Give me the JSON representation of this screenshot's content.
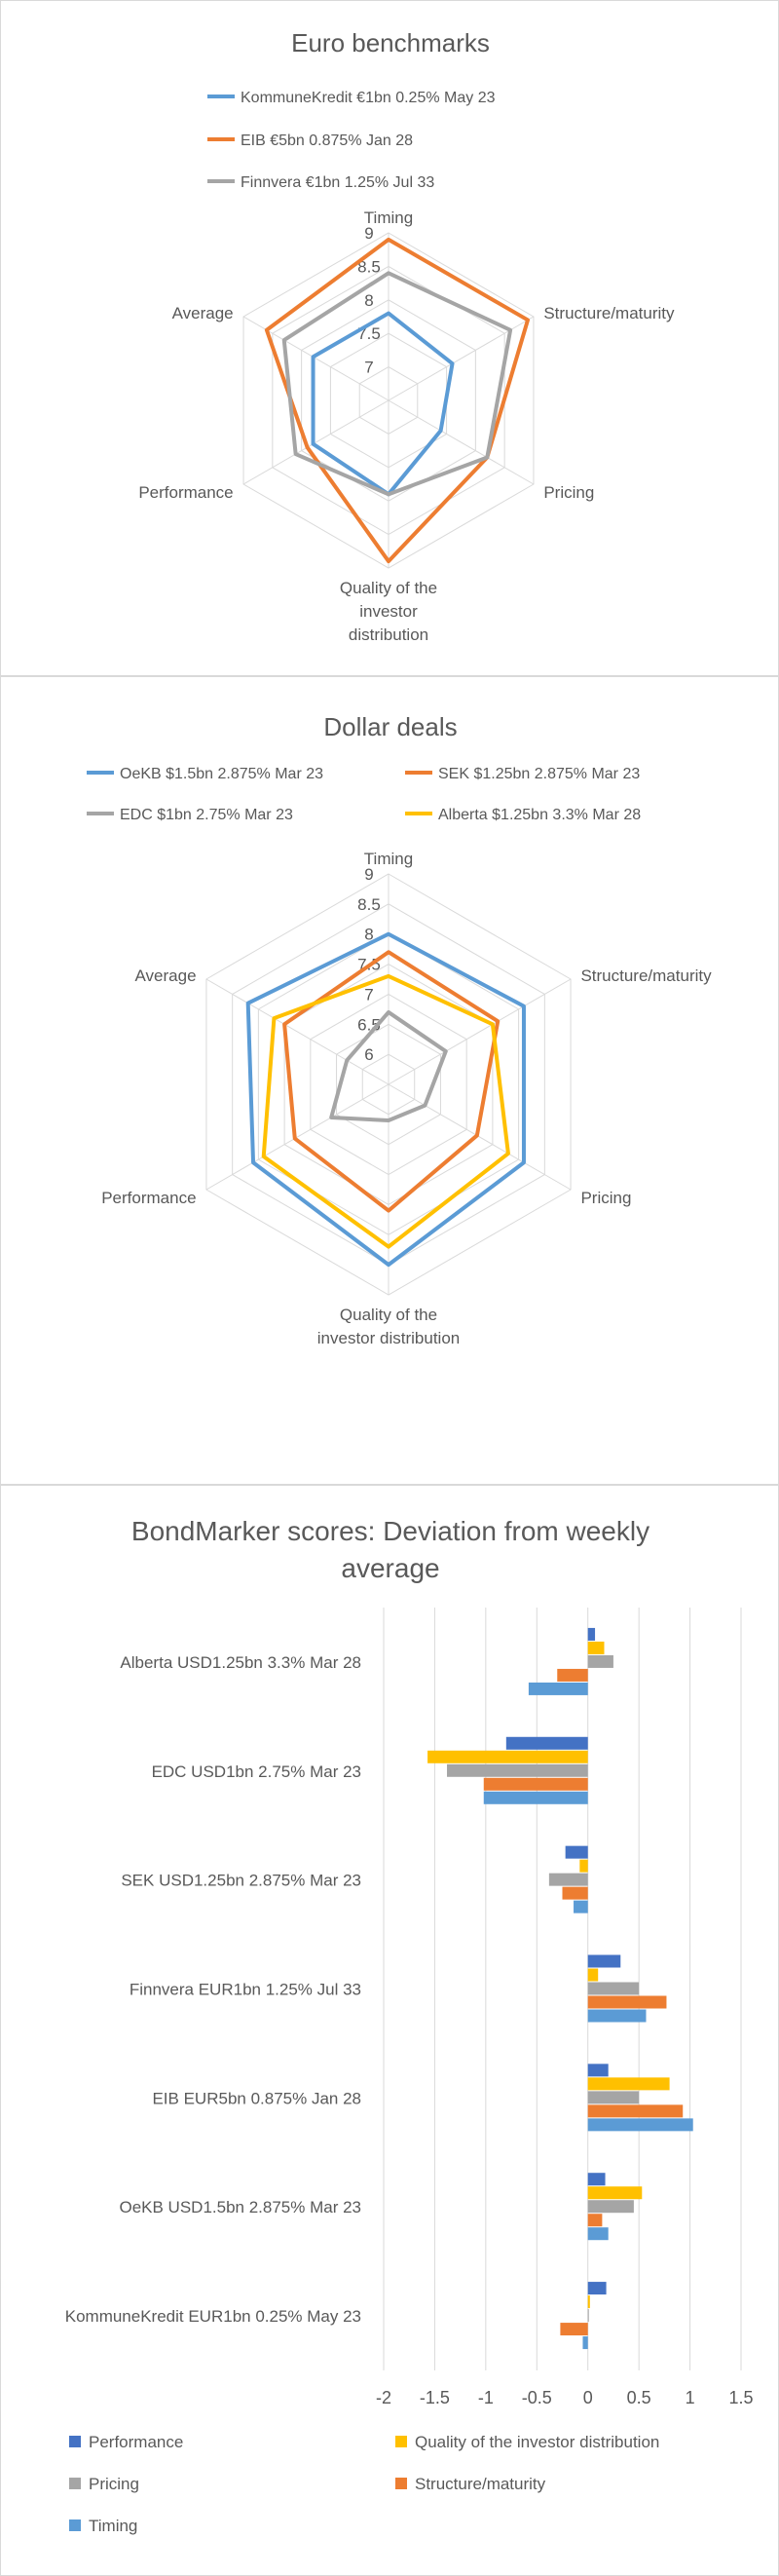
{
  "chart_data": [
    {
      "type": "radar",
      "title": "Euro benchmarks",
      "axes": [
        "Timing",
        "Structure/maturity",
        "Pricing",
        "Quality of the investor distribution",
        "Performance",
        "Average"
      ],
      "axis_label_lines": [
        [
          "Timing"
        ],
        [
          "Structure/maturity"
        ],
        [
          "Pricing"
        ],
        [
          "Quality of the",
          "investor",
          "distribution"
        ],
        [
          "Performance"
        ],
        [
          "Average"
        ]
      ],
      "rmin": 6.5,
      "rmax": 9,
      "ticks": [
        7,
        7.5,
        8,
        8.5,
        9
      ],
      "tick_labels": [
        "7",
        "7.5",
        "8",
        "8.5",
        "9"
      ],
      "grid": true,
      "legend_position": "top",
      "series": [
        {
          "name": "KommuneKredit €1bn 0.25% May 23",
          "color": "#5b9bd5",
          "values": [
            7.8,
            7.6,
            7.4,
            7.9,
            7.8,
            7.8
          ]
        },
        {
          "name": "EIB €5bn 0.875% Jan 28",
          "color": "#ed7d31",
          "values": [
            8.9,
            8.9,
            8.2,
            8.9,
            7.9,
            8.6
          ]
        },
        {
          "name": "Finnvera €1bn 1.25% Jul 33",
          "color": "#a5a5a5",
          "values": [
            8.4,
            8.6,
            8.2,
            7.9,
            8.1,
            8.3
          ]
        }
      ]
    },
    {
      "type": "radar",
      "title": "Dollar deals",
      "axes": [
        "Timing",
        "Structure/maturity",
        "Pricing",
        "Quality of the investor distribution",
        "Performance",
        "Average"
      ],
      "axis_label_lines": [
        [
          "Timing"
        ],
        [
          "Structure/maturity"
        ],
        [
          "Pricing"
        ],
        [
          "Quality of the",
          "investor distribution"
        ],
        [
          "Performance"
        ],
        [
          "Average"
        ]
      ],
      "rmin": 5.5,
      "rmax": 9,
      "ticks": [
        6,
        6.5,
        7,
        7.5,
        8,
        8.5,
        9
      ],
      "tick_labels": [
        "6",
        "6.5",
        "7",
        "7.5",
        "8",
        "8.5",
        "9"
      ],
      "grid": true,
      "legend_position": "top",
      "series": [
        {
          "name": "OeKB $1.5bn 2.875% Mar 23",
          "color": "#5b9bd5",
          "values": [
            8.0,
            8.1,
            8.1,
            8.5,
            8.1,
            8.2
          ]
        },
        {
          "name": "SEK $1.25bn 2.875% Mar 23",
          "color": "#ed7d31",
          "values": [
            7.7,
            7.6,
            7.2,
            7.6,
            7.3,
            7.5
          ]
        },
        {
          "name": "EDC $1bn 2.75% Mar 23",
          "color": "#a5a5a5",
          "values": [
            6.7,
            6.6,
            6.2,
            6.1,
            6.6,
            6.3
          ]
        },
        {
          "name": "Alberta $1.25bn 3.3% Mar 28",
          "color": "#ffc000",
          "values": [
            7.3,
            7.5,
            7.8,
            8.2,
            7.9,
            7.7
          ]
        }
      ]
    },
    {
      "type": "bar",
      "orientation": "horizontal",
      "title": "BondMarker scores: Deviation from weekly average",
      "title_lines": [
        "BondMarker scores: Deviation from weekly",
        "average"
      ],
      "categories": [
        "Alberta USD1.25bn 3.3% Mar 28",
        "EDC USD1bn 2.75% Mar 23",
        "SEK USD1.25bn 2.875% Mar 23",
        "Finnvera EUR1bn 1.25% Jul 33",
        "EIB EUR5bn 0.875% Jan 28",
        "OeKB USD1.5bn 2.875% Mar 23",
        "KommuneKredit EUR1bn 0.25% May 23"
      ],
      "xlim": [
        -2,
        1.5
      ],
      "x_ticks": [
        -2,
        -1.5,
        -1,
        -0.5,
        0,
        0.5,
        1,
        1.5
      ],
      "x_tick_labels": [
        "-2",
        "-1.5",
        "-1",
        "-0.5",
        "0",
        "0.5",
        "1",
        "1.5"
      ],
      "grid": true,
      "legend_position": "bottom",
      "series": [
        {
          "name": "Performance",
          "color": "#4472c4",
          "values": [
            0.07,
            -0.8,
            -0.22,
            0.32,
            0.2,
            0.17,
            0.18
          ]
        },
        {
          "name": "Quality of the investor distribution",
          "color": "#ffc000",
          "values": [
            0.16,
            -1.57,
            -0.08,
            0.1,
            0.8,
            0.53,
            0.02
          ]
        },
        {
          "name": "Pricing",
          "color": "#a5a5a5",
          "values": [
            0.25,
            -1.38,
            -0.38,
            0.5,
            0.5,
            0.45,
            0.0
          ]
        },
        {
          "name": "Structure/maturity",
          "color": "#ed7d31",
          "values": [
            -0.3,
            -1.02,
            -0.25,
            0.77,
            0.93,
            0.14,
            -0.27
          ]
        },
        {
          "name": "Timing",
          "color": "#5b9bd5",
          "values": [
            -0.58,
            -1.02,
            -0.14,
            0.57,
            1.03,
            0.2,
            -0.05
          ]
        }
      ]
    }
  ]
}
